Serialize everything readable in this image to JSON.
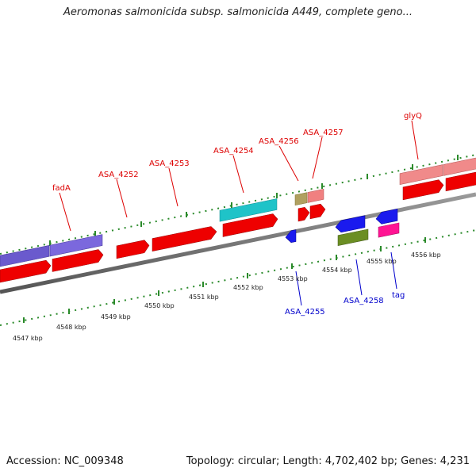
{
  "title": "Aeromonas salmonicida subsp. salmonicida A449, complete geno...",
  "footer": {
    "accession": "Accession: NC_009348",
    "topology": "Topology: circular; Length: 4,702,402 bp; Genes: 4,231"
  },
  "colors": {
    "backbone": "#7a7a7a",
    "tick": "#2a8a2a",
    "label_forward": "#dd0000",
    "label_reverse": "#0000cc"
  },
  "kbp_labels": [
    "4547 kbp",
    "4548 kbp",
    "4549 kbp",
    "4550 kbp",
    "4551 kbp",
    "4552 kbp",
    "4553 kbp",
    "4554 kbp",
    "4555 kbp",
    "4556 kbp"
  ],
  "gene_labels_forward": [
    "fadA",
    "ASA_4252",
    "ASA_4253",
    "ASA_4254",
    "ASA_4256",
    "ASA_4257",
    "glyQ"
  ],
  "gene_labels_reverse": [
    "ASA_4255",
    "ASA_4258",
    "tag"
  ]
}
